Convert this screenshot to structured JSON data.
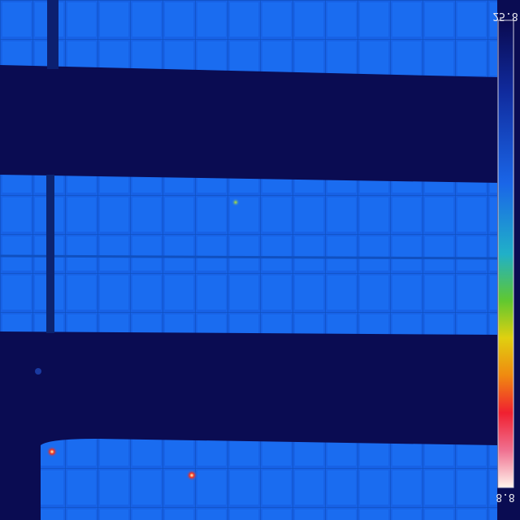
{
  "scale": {
    "top_label": "25.8",
    "bottom_label": "8.8"
  }
}
